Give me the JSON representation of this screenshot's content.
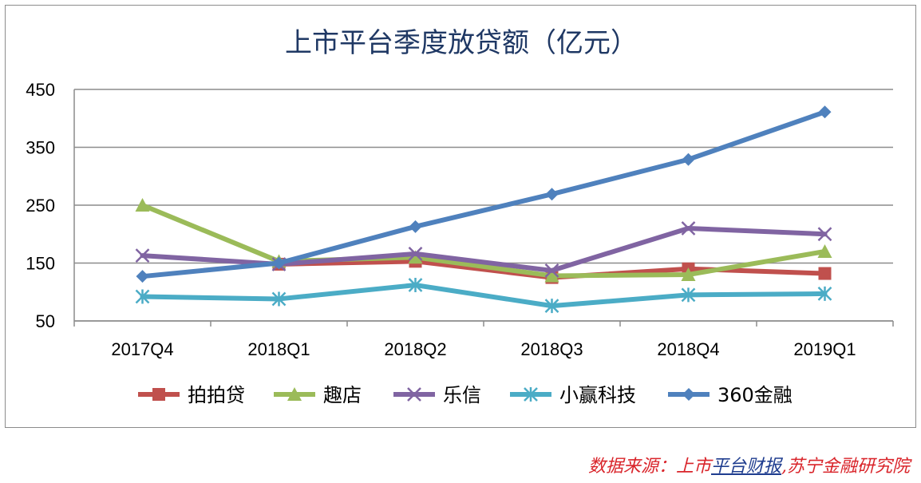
{
  "chart_data": {
    "type": "line",
    "title": "上市平台季度放贷额（亿元）",
    "xlabel": "",
    "ylabel": "",
    "categories": [
      "2017Q4",
      "2018Q1",
      "2018Q2",
      "2018Q3",
      "2018Q4",
      "2019Q1"
    ],
    "ylim": [
      50,
      450
    ],
    "yticks": [
      50,
      150,
      250,
      350,
      450
    ],
    "grid": "horizontal",
    "legend_position": "bottom",
    "series": [
      {
        "name": "拍拍贷",
        "values": [
          null,
          148,
          153,
          125,
          140,
          132
        ],
        "color": "#c0504d",
        "marker": "square"
      },
      {
        "name": "趣店",
        "values": [
          250,
          153,
          160,
          128,
          130,
          170
        ],
        "color": "#9bbb59",
        "marker": "triangle"
      },
      {
        "name": "乐信",
        "values": [
          163,
          148,
          166,
          137,
          210,
          200
        ],
        "color": "#8064a2",
        "marker": "x"
      },
      {
        "name": "小赢科技",
        "values": [
          92,
          88,
          112,
          76,
          95,
          97
        ],
        "color": "#4bacc6",
        "marker": "star"
      },
      {
        "name": "360金融",
        "values": [
          127,
          150,
          213,
          269,
          329,
          411
        ],
        "color": "#4f81bd",
        "marker": "diamond"
      }
    ]
  },
  "source": {
    "prefix": "数据来源：",
    "part1": "上市",
    "emphasis": "平台财报",
    "part2": ",苏宁金融研究院"
  }
}
